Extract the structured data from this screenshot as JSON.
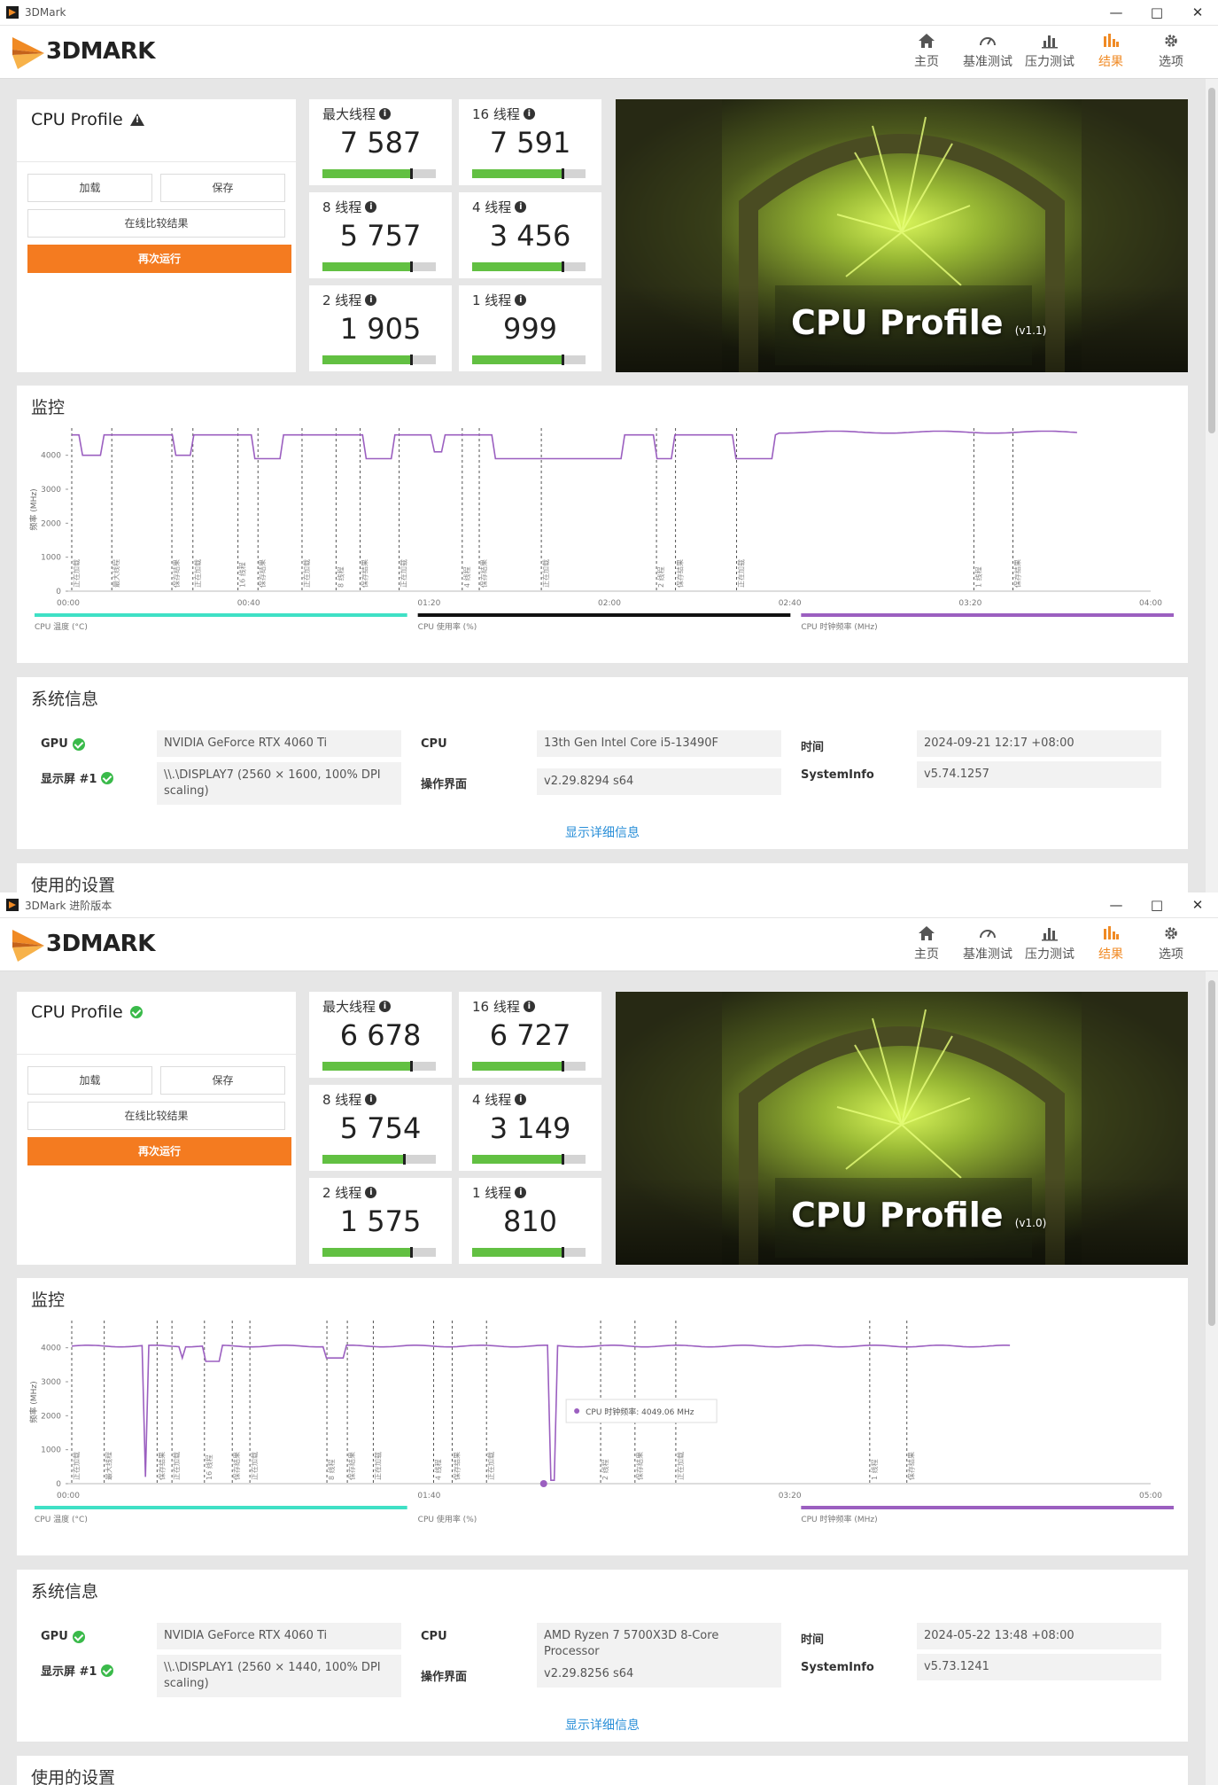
{
  "windows": [
    {
      "title": "3DMark",
      "logo": "3DMARK",
      "nav": [
        {
          "label": "主页",
          "icon": "home-icon"
        },
        {
          "label": "基准测试",
          "icon": "speedometer-icon"
        },
        {
          "label": "压力测试",
          "icon": "bar-chart-icon"
        },
        {
          "label": "结果",
          "icon": "results-icon",
          "active": true
        },
        {
          "label": "选项",
          "icon": "gear-icon"
        }
      ],
      "profile": {
        "title": "CPU Profile",
        "status": "warning",
        "load": "加载",
        "save": "保存",
        "compare": "在线比较结果",
        "run_again": "再次运行"
      },
      "scores": [
        {
          "label": "最大线程",
          "value": "7 587",
          "fill": 0.78
        },
        {
          "label": "16 线程",
          "value": "7 591",
          "fill": 0.8
        },
        {
          "label": "8 线程",
          "value": "5 757",
          "fill": 0.78
        },
        {
          "label": "4 线程",
          "value": "3 456",
          "fill": 0.8
        },
        {
          "label": "2 线程",
          "value": "1 905",
          "fill": 0.78
        },
        {
          "label": "1 线程",
          "value": "999",
          "fill": 0.8
        }
      ],
      "hero": {
        "title": "CPU Profile",
        "version": "(v1.1)"
      },
      "monitor": {
        "title": "监控",
        "ylabel": "频率 (MHz)",
        "yticks": [
          "0",
          "1000",
          "2000",
          "3000",
          "4000"
        ],
        "xticks": [
          "00:00",
          "00:40",
          "01:20",
          "02:00",
          "02:40",
          "03:20",
          "04:00"
        ],
        "legend": [
          "CPU 温度 (°C)",
          "CPU 使用率 (%)",
          "CPU 时钟频率 (MHz)"
        ],
        "markers": [
          "正在加载",
          "最大线程",
          "保存结果",
          "正在加载",
          "16 线程",
          "保存结果",
          "正在加载",
          "8 线程",
          "保存结果",
          "正在加载",
          "4 线程",
          "保存结果",
          "正在加载",
          "2 线程",
          "保存结果",
          "正在加载",
          "1 线程",
          "保存结果"
        ]
      },
      "sysinfo": {
        "title": "系统信息",
        "gpu_label": "GPU",
        "gpu": "NVIDIA GeForce RTX 4060 Ti",
        "display_label": "显示屏 #1",
        "display": "\\\\.\\DISPLAY7 (2560 × 1600, 100% DPI scaling)",
        "cpu_label": "CPU",
        "cpu": "13th Gen Intel Core i5-13490F",
        "os_label": "操作界面",
        "os": "v2.29.8294 s64",
        "time_label": "时间",
        "time": "2024-09-21 12:17 +08:00",
        "si_label": "SystemInfo",
        "si": "v5.74.1257",
        "detail": "显示详细信息"
      },
      "used_settings": "使用的设置"
    },
    {
      "title": "3DMark 进阶版本",
      "logo": "3DMARK",
      "nav": [
        {
          "label": "主页",
          "icon": "home-icon"
        },
        {
          "label": "基准测试",
          "icon": "speedometer-icon"
        },
        {
          "label": "压力测试",
          "icon": "bar-chart-icon"
        },
        {
          "label": "结果",
          "icon": "results-icon",
          "active": true
        },
        {
          "label": "选项",
          "icon": "gear-icon"
        }
      ],
      "profile": {
        "title": "CPU Profile",
        "status": "ok",
        "load": "加载",
        "save": "保存",
        "compare": "在线比较结果",
        "run_again": "再次运行"
      },
      "scores": [
        {
          "label": "最大线程",
          "value": "6 678",
          "fill": 0.78
        },
        {
          "label": "16 线程",
          "value": "6 727",
          "fill": 0.8
        },
        {
          "label": "8 线程",
          "value": "5 754",
          "fill": 0.72
        },
        {
          "label": "4 线程",
          "value": "3 149",
          "fill": 0.8
        },
        {
          "label": "2 线程",
          "value": "1 575",
          "fill": 0.78
        },
        {
          "label": "1 线程",
          "value": "810",
          "fill": 0.8
        }
      ],
      "hero": {
        "title": "CPU Profile",
        "version": "(v1.0)"
      },
      "monitor": {
        "title": "监控",
        "ylabel": "频率 (MHz)",
        "yticks": [
          "0",
          "1000",
          "2000",
          "3000",
          "4000"
        ],
        "xticks": [
          "00:00",
          "01:40",
          "03:20",
          "05:00"
        ],
        "legend": [
          "CPU 温度 (°C)",
          "CPU 使用率 (%)",
          "CPU 时钟频率 (MHz)"
        ],
        "tooltip": "CPU 时钟频率: 4049.06 MHz",
        "markers": [
          "正在加载",
          "最大线程",
          "保存结果",
          "正在加载",
          "16 线程",
          "保存结果",
          "正在加载",
          "8 线程",
          "保存结果",
          "正在加载",
          "4 线程",
          "保存结果",
          "正在加载",
          "2 线程",
          "保存结果",
          "正在加载",
          "1 线程",
          "保存结果"
        ]
      },
      "sysinfo": {
        "title": "系统信息",
        "gpu_label": "GPU",
        "gpu": "NVIDIA GeForce RTX 4060 Ti",
        "display_label": "显示屏 #1",
        "display": "\\\\.\\DISPLAY1 (2560 × 1440, 100% DPI scaling)",
        "cpu_label": "CPU",
        "cpu": "AMD Ryzen 7 5700X3D 8-Core Processor",
        "os_label": "操作界面",
        "os": "v2.29.8256 s64",
        "time_label": "时间",
        "time": "2024-05-22 13:48 +08:00",
        "si_label": "SystemInfo",
        "si": "v5.73.1241",
        "detail": "显示详细信息"
      },
      "used_settings": "使用的设置"
    }
  ],
  "colors": {
    "accent": "#f08a24",
    "run_button": "#f47b20",
    "score_bar": "#62c042",
    "clock_line": "#9b5fc0",
    "temp_line": "#3fe0c5",
    "usage_line": "#111111",
    "ok": "#3aba4a"
  }
}
